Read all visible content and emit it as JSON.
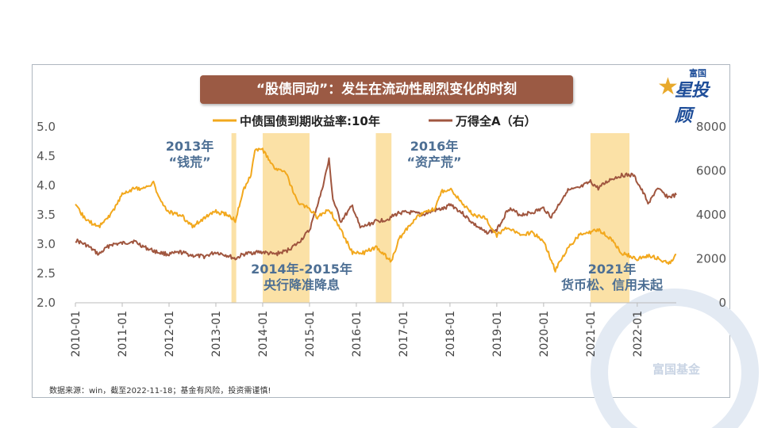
{
  "colors": {
    "yield": "#f2a81d",
    "index": "#a0563f",
    "shade": "#fbe1a6",
    "annotation": "#4d6f94",
    "title_bg": "#9b5a44"
  },
  "title": "“股债同动”：发生在流动性剧烈变化的时刻",
  "logo": {
    "small": "富国",
    "main": "星投顾",
    "icon": "star-icon"
  },
  "source": "数据来源：win，截至2022-11-18；基金有风险，投资需谨慎!",
  "watermark": "富国基金",
  "chart_data": {
    "type": "line",
    "title": "“股债同动”：发生在流动性剧烈变化的时刻",
    "x_ticks": [
      "2010-01",
      "2011-01",
      "2012-01",
      "2013-01",
      "2014-01",
      "2015-01",
      "2016-01",
      "2017-01",
      "2018-01",
      "2019-01",
      "2020-01",
      "2021-01",
      "2022-01"
    ],
    "x_range": [
      "2010-01",
      "2022-11"
    ],
    "y_left": {
      "ticks": [
        "2.0",
        "2.5",
        "3.0",
        "3.5",
        "4.0",
        "4.5",
        "5.0"
      ],
      "range": [
        2.0,
        5.0
      ]
    },
    "y_right": {
      "ticks": [
        "0",
        "2000",
        "4000",
        "6000",
        "8000"
      ],
      "range": [
        0,
        8000
      ]
    },
    "legend": "top",
    "grid": false,
    "series": [
      {
        "name": "中债国债到期收益率:10年",
        "axis": "left",
        "points": [
          [
            "2010-01",
            3.65
          ],
          [
            "2010-04",
            3.4
          ],
          [
            "2010-07",
            3.3
          ],
          [
            "2010-10",
            3.5
          ],
          [
            "2011-01",
            3.85
          ],
          [
            "2011-04",
            3.95
          ],
          [
            "2011-07",
            3.95
          ],
          [
            "2011-09",
            4.05
          ],
          [
            "2011-11",
            3.7
          ],
          [
            "2012-01",
            3.55
          ],
          [
            "2012-04",
            3.5
          ],
          [
            "2012-07",
            3.3
          ],
          [
            "2012-10",
            3.45
          ],
          [
            "2013-01",
            3.55
          ],
          [
            "2013-04",
            3.5
          ],
          [
            "2013-06",
            3.4
          ],
          [
            "2013-08",
            3.9
          ],
          [
            "2013-10",
            4.2
          ],
          [
            "2013-11",
            4.6
          ],
          [
            "2014-01",
            4.6
          ],
          [
            "2014-04",
            4.3
          ],
          [
            "2014-07",
            4.2
          ],
          [
            "2014-10",
            3.7
          ],
          [
            "2015-01",
            3.6
          ],
          [
            "2015-03",
            3.45
          ],
          [
            "2015-06",
            3.6
          ],
          [
            "2015-09",
            3.25
          ],
          [
            "2015-12",
            2.85
          ],
          [
            "2016-03",
            2.85
          ],
          [
            "2016-06",
            2.95
          ],
          [
            "2016-10",
            2.7
          ],
          [
            "2016-12",
            3.1
          ],
          [
            "2017-03",
            3.35
          ],
          [
            "2017-06",
            3.55
          ],
          [
            "2017-09",
            3.6
          ],
          [
            "2017-11",
            3.9
          ],
          [
            "2018-01",
            3.95
          ],
          [
            "2018-04",
            3.7
          ],
          [
            "2018-07",
            3.5
          ],
          [
            "2018-10",
            3.45
          ],
          [
            "2019-01",
            3.15
          ],
          [
            "2019-04",
            3.3
          ],
          [
            "2019-07",
            3.15
          ],
          [
            "2019-10",
            3.2
          ],
          [
            "2020-01",
            3.05
          ],
          [
            "2020-04",
            2.55
          ],
          [
            "2020-07",
            2.9
          ],
          [
            "2020-10",
            3.15
          ],
          [
            "2021-01",
            3.2
          ],
          [
            "2021-03",
            3.25
          ],
          [
            "2021-06",
            3.1
          ],
          [
            "2021-09",
            2.85
          ],
          [
            "2022-01",
            2.75
          ],
          [
            "2022-04",
            2.8
          ],
          [
            "2022-07",
            2.75
          ],
          [
            "2022-09",
            2.65
          ],
          [
            "2022-11",
            2.82
          ]
        ]
      },
      {
        "name": "万得全A（右）",
        "axis": "right",
        "points": [
          [
            "2010-01",
            2850
          ],
          [
            "2010-04",
            2600
          ],
          [
            "2010-07",
            2200
          ],
          [
            "2010-10",
            2650
          ],
          [
            "2011-01",
            2700
          ],
          [
            "2011-04",
            2800
          ],
          [
            "2011-07",
            2500
          ],
          [
            "2011-10",
            2300
          ],
          [
            "2012-01",
            2200
          ],
          [
            "2012-04",
            2300
          ],
          [
            "2012-07",
            2150
          ],
          [
            "2012-10",
            2100
          ],
          [
            "2013-01",
            2300
          ],
          [
            "2013-04",
            2150
          ],
          [
            "2013-06",
            2000
          ],
          [
            "2013-08",
            2200
          ],
          [
            "2013-11",
            2300
          ],
          [
            "2014-01",
            2300
          ],
          [
            "2014-04",
            2200
          ],
          [
            "2014-07",
            2350
          ],
          [
            "2014-10",
            2700
          ],
          [
            "2015-01",
            3300
          ],
          [
            "2015-04",
            5000
          ],
          [
            "2015-06",
            6500
          ],
          [
            "2015-07",
            4700
          ],
          [
            "2015-09",
            3700
          ],
          [
            "2015-12",
            4400
          ],
          [
            "2016-02",
            3400
          ],
          [
            "2016-06",
            3700
          ],
          [
            "2016-09",
            3800
          ],
          [
            "2016-12",
            4100
          ],
          [
            "2017-03",
            4100
          ],
          [
            "2017-06",
            4000
          ],
          [
            "2017-09",
            4200
          ],
          [
            "2017-12",
            4300
          ],
          [
            "2018-01",
            4500
          ],
          [
            "2018-04",
            4100
          ],
          [
            "2018-07",
            3600
          ],
          [
            "2018-10",
            3200
          ],
          [
            "2019-01",
            3300
          ],
          [
            "2019-04",
            4300
          ],
          [
            "2019-07",
            4000
          ],
          [
            "2019-10",
            4100
          ],
          [
            "2020-01",
            4300
          ],
          [
            "2020-03",
            3900
          ],
          [
            "2020-07",
            5100
          ],
          [
            "2020-10",
            5200
          ],
          [
            "2021-01",
            5500
          ],
          [
            "2021-03",
            5200
          ],
          [
            "2021-06",
            5600
          ],
          [
            "2021-09",
            5800
          ],
          [
            "2021-12",
            5800
          ],
          [
            "2022-01",
            5500
          ],
          [
            "2022-04",
            4500
          ],
          [
            "2022-06",
            5200
          ],
          [
            "2022-09",
            4800
          ],
          [
            "2022-11",
            4900
          ]
        ]
      }
    ],
    "shaded_periods": [
      [
        "2013-05",
        "2013-06"
      ],
      [
        "2014-01",
        "2015-01"
      ],
      [
        "2016-06",
        "2016-10"
      ],
      [
        "2021-01",
        "2021-11"
      ]
    ],
    "annotations": [
      {
        "lines": [
          "2013年",
          "“钱荒”"
        ]
      },
      {
        "lines": [
          "2014年-2015年",
          "央行降准降息"
        ]
      },
      {
        "lines": [
          "2016年",
          "“资产荒”"
        ]
      },
      {
        "lines": [
          "2021年",
          "货币松、信用未起"
        ]
      }
    ]
  }
}
